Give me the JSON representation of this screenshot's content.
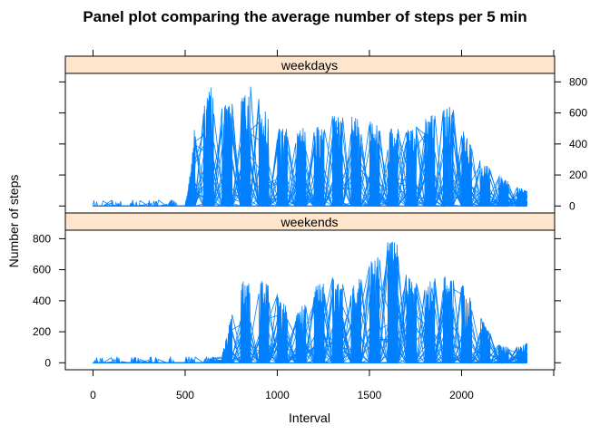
{
  "chart_data": {
    "type": "line",
    "title": "Panel plot comparing the average number of steps per 5 min",
    "xlabel": "Interval",
    "ylabel": "Number of steps",
    "xlim": [
      -150,
      2505
    ],
    "ylim": [
      -45,
      855
    ],
    "x_ticks": [
      0,
      500,
      1000,
      1500,
      2000
    ],
    "y_ticks": [
      0,
      200,
      400,
      600,
      800
    ],
    "series_color": "#0080ff",
    "strip_color": "#ffe5cc",
    "panels": [
      {
        "name": "weekdays",
        "y_axis_side": "right",
        "activity_profile": [
          [
            0,
            10
          ],
          [
            500,
            15
          ],
          [
            520,
            150
          ],
          [
            550,
            500
          ],
          [
            600,
            700
          ],
          [
            650,
            780
          ],
          [
            700,
            650
          ],
          [
            800,
            700
          ],
          [
            850,
            780
          ],
          [
            900,
            700
          ],
          [
            950,
            600
          ],
          [
            1000,
            500
          ],
          [
            1100,
            500
          ],
          [
            1200,
            520
          ],
          [
            1300,
            580
          ],
          [
            1400,
            580
          ],
          [
            1500,
            550
          ],
          [
            1600,
            500
          ],
          [
            1700,
            500
          ],
          [
            1800,
            560
          ],
          [
            1900,
            650
          ],
          [
            1950,
            640
          ],
          [
            2000,
            500
          ],
          [
            2100,
            300
          ],
          [
            2200,
            200
          ],
          [
            2350,
            100
          ]
        ]
      },
      {
        "name": "weekends",
        "y_axis_side": "left",
        "activity_profile": [
          [
            0,
            10
          ],
          [
            600,
            20
          ],
          [
            700,
            60
          ],
          [
            800,
            550
          ],
          [
            900,
            550
          ],
          [
            1000,
            450
          ],
          [
            1100,
            300
          ],
          [
            1200,
            500
          ],
          [
            1300,
            550
          ],
          [
            1400,
            480
          ],
          [
            1500,
            650
          ],
          [
            1600,
            790
          ],
          [
            1650,
            780
          ],
          [
            1700,
            570
          ],
          [
            1800,
            520
          ],
          [
            1900,
            570
          ],
          [
            2000,
            520
          ],
          [
            2100,
            300
          ],
          [
            2200,
            120
          ],
          [
            2300,
            100
          ],
          [
            2355,
            130
          ]
        ]
      }
    ]
  }
}
